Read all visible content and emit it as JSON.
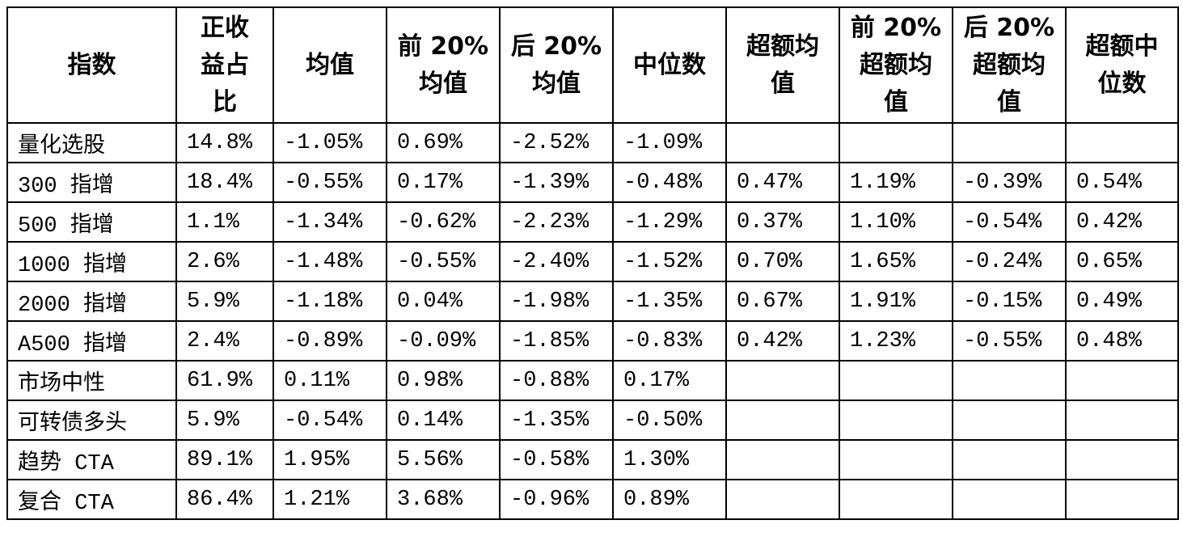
{
  "table": {
    "header": [
      [
        "指数"
      ],
      [
        "正收",
        "益占",
        "比"
      ],
      [
        "均值"
      ],
      [
        "前 20%",
        "均值"
      ],
      [
        "后 20%",
        "均值"
      ],
      [
        "中位数"
      ],
      [
        "超额均",
        "值"
      ],
      [
        "前 20%",
        "超额均",
        "值"
      ],
      [
        "后 20%",
        "超额均",
        "值"
      ],
      [
        "超额中",
        "位数"
      ]
    ],
    "rows": [
      [
        "量化选股",
        "14.8%",
        "-1.05%",
        "0.69%",
        "-2.52%",
        "-1.09%",
        null,
        null,
        null,
        null
      ],
      [
        "300 指增",
        "18.4%",
        "-0.55%",
        "0.17%",
        "-1.39%",
        "-0.48%",
        "0.47%",
        "1.19%",
        "-0.39%",
        "0.54%"
      ],
      [
        "500 指增",
        "1.1%",
        "-1.34%",
        "-0.62%",
        "-2.23%",
        "-1.29%",
        "0.37%",
        "1.10%",
        "-0.54%",
        "0.42%"
      ],
      [
        "1000 指增",
        "2.6%",
        "-1.48%",
        "-0.55%",
        "-2.40%",
        "-1.52%",
        "0.70%",
        "1.65%",
        "-0.24%",
        "0.65%"
      ],
      [
        "2000 指增",
        "5.9%",
        "-1.18%",
        "0.04%",
        "-1.98%",
        "-1.35%",
        "0.67%",
        "1.91%",
        "-0.15%",
        "0.49%"
      ],
      [
        "A500 指增",
        "2.4%",
        "-0.89%",
        "-0.09%",
        "-1.85%",
        "-0.83%",
        "0.42%",
        "1.23%",
        "-0.55%",
        "0.48%"
      ],
      [
        "市场中性",
        "61.9%",
        "0.11%",
        "0.98%",
        "-0.88%",
        "0.17%",
        null,
        null,
        null,
        null
      ],
      [
        "可转债多头",
        "5.9%",
        "-0.54%",
        "0.14%",
        "-1.35%",
        "-0.50%",
        null,
        null,
        null,
        null
      ],
      [
        "趋势 CTA",
        "89.1%",
        "1.95%",
        "5.56%",
        "-0.58%",
        "1.30%",
        null,
        null,
        null,
        null
      ],
      [
        "复合 CTA",
        "86.4%",
        "1.21%",
        "3.68%",
        "-0.96%",
        "0.89%",
        null,
        null,
        null,
        null
      ]
    ]
  }
}
